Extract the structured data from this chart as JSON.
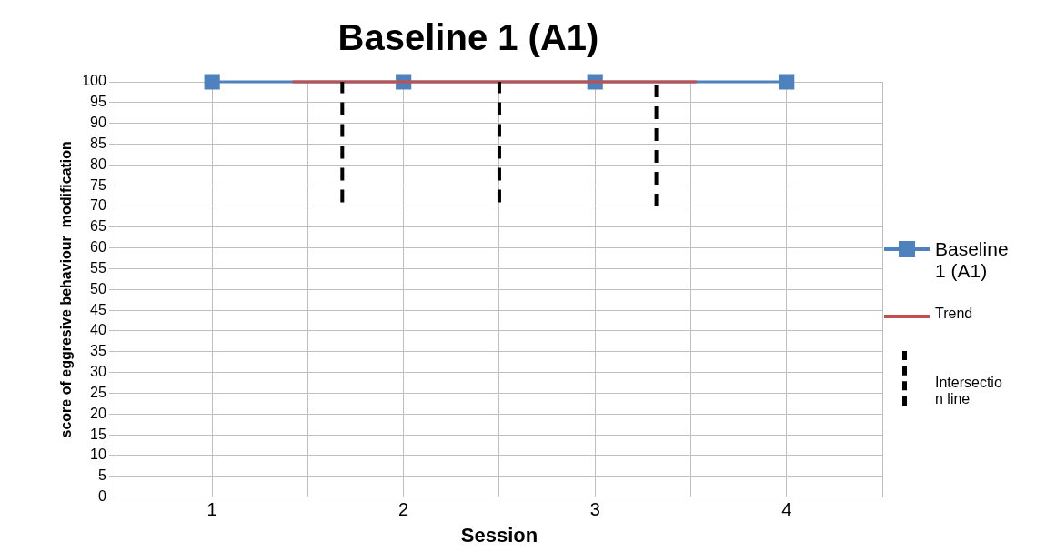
{
  "chart_data": {
    "type": "line",
    "title": "Baseline 1 (A1)",
    "xlabel": "Session",
    "ylabel": "score of eggresive behaviour  modification",
    "x": [
      1,
      2,
      3,
      4
    ],
    "xlim": [
      0.5,
      4.5
    ],
    "xticks": [
      {
        "value": 0.5,
        "label": null
      },
      1,
      {
        "value": 1.5,
        "label": null
      },
      2,
      {
        "value": 2.5,
        "label": null
      },
      3,
      {
        "value": 3.5,
        "label": null
      },
      4,
      {
        "value": 4.5,
        "label": null
      }
    ],
    "ylim": [
      0,
      100
    ],
    "yticks": [
      0,
      5,
      10,
      15,
      20,
      25,
      30,
      35,
      40,
      45,
      50,
      55,
      60,
      65,
      70,
      75,
      80,
      85,
      90,
      95,
      100
    ],
    "grid": true,
    "legend": "right",
    "series": [
      {
        "name": "Baseline 1 (A1)",
        "color": "#4f81bd",
        "marker": "square",
        "values": [
          100,
          100,
          100,
          100
        ]
      },
      {
        "name": "Trend",
        "color": "#c0504d",
        "marker": "none",
        "x": [
          1.42,
          3.53
        ],
        "values": [
          100,
          100
        ]
      },
      {
        "name": "Intersection line",
        "color": "#000000",
        "marker": "none",
        "line_style": "dashed",
        "x": [
          1.68,
          1.68,
          2.1,
          2.5,
          2.5,
          2.9,
          3.32,
          3.32
        ],
        "values": [
          71,
          100,
          null,
          71,
          100,
          null,
          70,
          100
        ]
      }
    ]
  }
}
